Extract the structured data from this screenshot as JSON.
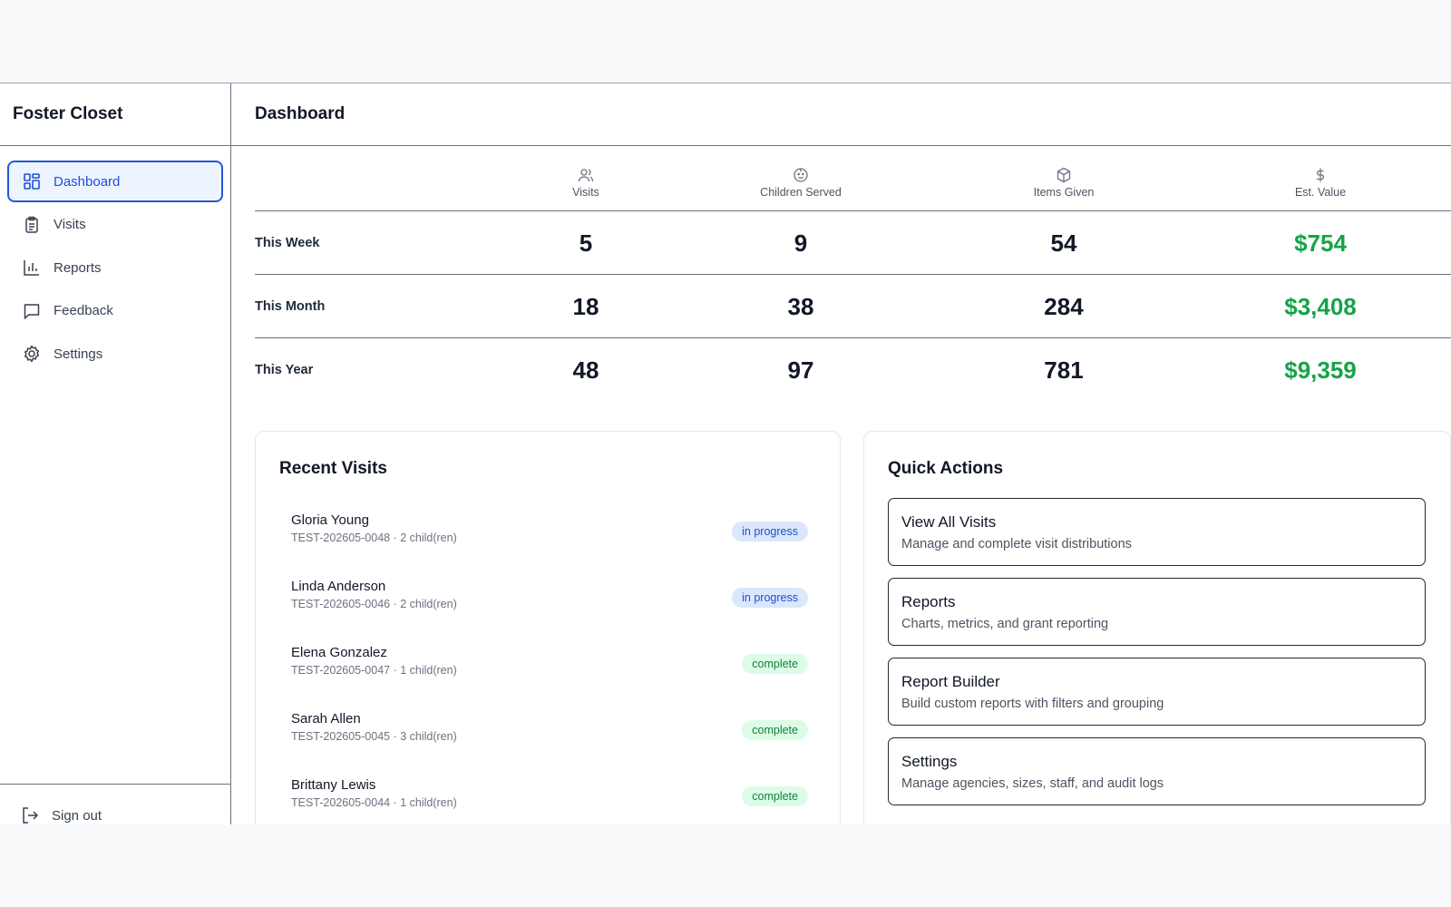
{
  "sidebar": {
    "brand": "Foster Closet",
    "items": [
      {
        "label": "Dashboard",
        "icon": "dashboard-grid-icon",
        "active": true
      },
      {
        "label": "Visits",
        "icon": "clipboard-icon"
      },
      {
        "label": "Reports",
        "icon": "bar-chart-icon"
      },
      {
        "label": "Feedback",
        "icon": "message-icon"
      },
      {
        "label": "Settings",
        "icon": "gear-icon"
      }
    ],
    "signout": "Sign out"
  },
  "header": {
    "title": "Dashboard"
  },
  "stats": {
    "columns": [
      {
        "label": "Visits",
        "icon": "users-icon"
      },
      {
        "label": "Children Served",
        "icon": "baby-face-icon"
      },
      {
        "label": "Items Given",
        "icon": "package-icon"
      },
      {
        "label": "Est. Value",
        "icon": "dollar-icon"
      }
    ],
    "rows": [
      {
        "label": "This Week",
        "visits": "5",
        "children": "9",
        "items": "54",
        "value": "$754"
      },
      {
        "label": "This Month",
        "visits": "18",
        "children": "38",
        "items": "284",
        "value": "$3,408"
      },
      {
        "label": "This Year",
        "visits": "48",
        "children": "97",
        "items": "781",
        "value": "$9,359"
      }
    ]
  },
  "recent_visits": {
    "title": "Recent Visits",
    "items": [
      {
        "name": "Gloria Young",
        "sub": "TEST-202605-0048 · 2 child(ren)",
        "status": "in progress"
      },
      {
        "name": "Linda Anderson",
        "sub": "TEST-202605-0046 · 2 child(ren)",
        "status": "in progress"
      },
      {
        "name": "Elena Gonzalez",
        "sub": "TEST-202605-0047 · 1 child(ren)",
        "status": "complete"
      },
      {
        "name": "Sarah Allen",
        "sub": "TEST-202605-0045 · 3 child(ren)",
        "status": "complete"
      },
      {
        "name": "Brittany Lewis",
        "sub": "TEST-202605-0044 · 1 child(ren)",
        "status": "complete"
      }
    ]
  },
  "quick_actions": {
    "title": "Quick Actions",
    "items": [
      {
        "title": "View All Visits",
        "desc": "Manage and complete visit distributions"
      },
      {
        "title": "Reports",
        "desc": "Charts, metrics, and grant reporting"
      },
      {
        "title": "Report Builder",
        "desc": "Build custom reports with filters and grouping"
      },
      {
        "title": "Settings",
        "desc": "Manage agencies, sizes, staff, and audit logs"
      }
    ]
  },
  "colors": {
    "accent": "#2557d6",
    "money": "#16a34a",
    "progress_bg": "#dbe7fb",
    "complete_bg": "#dcfce7"
  }
}
